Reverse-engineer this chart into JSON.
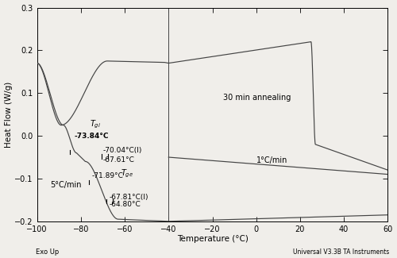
{
  "xlim": [
    -100,
    60
  ],
  "ylim": [
    -0.2,
    0.3
  ],
  "xlabel": "Temperature (°C)",
  "ylabel": "Heat Flow (W/g)",
  "xticks": [
    -100,
    -80,
    -60,
    -40,
    -20,
    0,
    20,
    40,
    60
  ],
  "yticks": [
    -0.2,
    -0.1,
    0.0,
    0.1,
    0.2,
    0.3
  ],
  "exo_up_label": "Exo Up",
  "universal_label": "Universal V3.3B TA Instruments",
  "label_30min": "30 min annealing",
  "label_1C": "1°C/min",
  "label_5C": "5°C/min",
  "ann_T73": "-73.84°C",
  "ann_T70i": "-70.04°C(I)",
  "ann_T67": "-67.61°C",
  "ann_T71": "-71.89°C",
  "ann_T67b": "-67.81°C(I)",
  "ann_T64": "-64.80°C",
  "line_color": "#444444",
  "bg_color": "#f0eeea"
}
